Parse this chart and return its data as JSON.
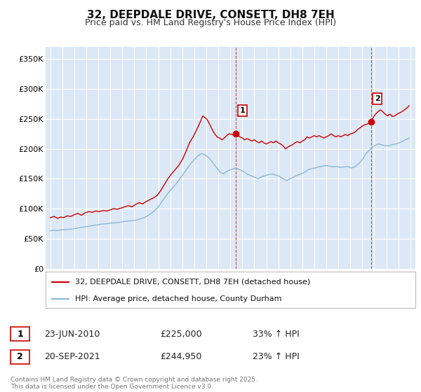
{
  "title": "32, DEEPDALE DRIVE, CONSETT, DH8 7EH",
  "subtitle": "Price paid vs. HM Land Registry's House Price Index (HPI)",
  "title_fontsize": 11,
  "subtitle_fontsize": 9,
  "bg_color": "#ffffff",
  "plot_bg_color": "#dce8f5",
  "red_color": "#cc0000",
  "blue_color": "#89b8d9",
  "grid_color": "#ffffff",
  "ylim": [
    0,
    370000
  ],
  "yticks": [
    0,
    50000,
    100000,
    150000,
    200000,
    250000,
    300000,
    350000
  ],
  "ytick_labels": [
    "£0",
    "£50K",
    "£100K",
    "£150K",
    "£200K",
    "£250K",
    "£300K",
    "£350K"
  ],
  "xlim_start": 1994.6,
  "xlim_end": 2025.4,
  "xticks": [
    1995,
    1996,
    1997,
    1998,
    1999,
    2000,
    2001,
    2002,
    2003,
    2004,
    2005,
    2006,
    2007,
    2008,
    2009,
    2010,
    2011,
    2012,
    2013,
    2014,
    2015,
    2016,
    2017,
    2018,
    2019,
    2020,
    2021,
    2022,
    2023,
    2024,
    2025
  ],
  "marker1_x": 2010.47,
  "marker1_y": 225000,
  "marker1_label": "1",
  "marker1_date": "23-JUN-2010",
  "marker1_price": "£225,000",
  "marker1_hpi": "33% ↑ HPI",
  "marker2_x": 2021.72,
  "marker2_y": 244950,
  "marker2_label": "2",
  "marker2_date": "20-SEP-2021",
  "marker2_price": "£244,950",
  "marker2_hpi": "23% ↑ HPI",
  "legend_label_red": "32, DEEPDALE DRIVE, CONSETT, DH8 7EH (detached house)",
  "legend_label_blue": "HPI: Average price, detached house, County Durham",
  "footnote": "Contains HM Land Registry data © Crown copyright and database right 2025.\nThis data is licensed under the Open Government Licence v3.0.",
  "red_data": [
    [
      1995.0,
      85000
    ],
    [
      1995.3,
      87000
    ],
    [
      1995.6,
      84000
    ],
    [
      1995.9,
      86000
    ],
    [
      1996.1,
      85000
    ],
    [
      1996.4,
      88000
    ],
    [
      1996.7,
      87000
    ],
    [
      1997.0,
      90000
    ],
    [
      1997.3,
      92000
    ],
    [
      1997.6,
      89000
    ],
    [
      1997.9,
      93000
    ],
    [
      1998.2,
      95000
    ],
    [
      1998.5,
      94000
    ],
    [
      1998.8,
      96000
    ],
    [
      1999.1,
      95000
    ],
    [
      1999.4,
      97000
    ],
    [
      1999.7,
      96000
    ],
    [
      2000.0,
      98000
    ],
    [
      2000.3,
      100000
    ],
    [
      2000.6,
      99000
    ],
    [
      2000.9,
      101000
    ],
    [
      2001.2,
      103000
    ],
    [
      2001.5,
      105000
    ],
    [
      2001.8,
      103000
    ],
    [
      2002.1,
      107000
    ],
    [
      2002.4,
      110000
    ],
    [
      2002.7,
      108000
    ],
    [
      2003.0,
      112000
    ],
    [
      2003.3,
      115000
    ],
    [
      2003.6,
      118000
    ],
    [
      2003.9,
      122000
    ],
    [
      2004.2,
      130000
    ],
    [
      2004.5,
      140000
    ],
    [
      2004.8,
      150000
    ],
    [
      2005.1,
      158000
    ],
    [
      2005.4,
      165000
    ],
    [
      2005.7,
      172000
    ],
    [
      2006.0,
      182000
    ],
    [
      2006.3,
      195000
    ],
    [
      2006.6,
      210000
    ],
    [
      2006.9,
      220000
    ],
    [
      2007.2,
      232000
    ],
    [
      2007.5,
      245000
    ],
    [
      2007.7,
      255000
    ],
    [
      2007.9,
      252000
    ],
    [
      2008.1,
      248000
    ],
    [
      2008.3,
      240000
    ],
    [
      2008.5,
      232000
    ],
    [
      2008.7,
      225000
    ],
    [
      2008.9,
      220000
    ],
    [
      2009.1,
      218000
    ],
    [
      2009.3,
      215000
    ],
    [
      2009.5,
      218000
    ],
    [
      2009.7,
      222000
    ],
    [
      2009.9,
      225000
    ],
    [
      2010.1,
      224000
    ],
    [
      2010.3,
      223000
    ],
    [
      2010.47,
      225000
    ],
    [
      2010.6,
      222000
    ],
    [
      2010.8,
      220000
    ],
    [
      2011.0,
      218000
    ],
    [
      2011.2,
      215000
    ],
    [
      2011.4,
      217000
    ],
    [
      2011.6,
      215000
    ],
    [
      2011.8,
      213000
    ],
    [
      2012.0,
      215000
    ],
    [
      2012.2,
      212000
    ],
    [
      2012.4,
      210000
    ],
    [
      2012.6,
      213000
    ],
    [
      2012.8,
      210000
    ],
    [
      2013.0,
      208000
    ],
    [
      2013.2,
      210000
    ],
    [
      2013.4,
      212000
    ],
    [
      2013.6,
      210000
    ],
    [
      2013.8,
      213000
    ],
    [
      2014.0,
      210000
    ],
    [
      2014.2,
      208000
    ],
    [
      2014.4,
      205000
    ],
    [
      2014.6,
      200000
    ],
    [
      2014.8,
      203000
    ],
    [
      2015.0,
      205000
    ],
    [
      2015.2,
      207000
    ],
    [
      2015.4,
      210000
    ],
    [
      2015.6,
      212000
    ],
    [
      2015.8,
      210000
    ],
    [
      2016.0,
      213000
    ],
    [
      2016.2,
      215000
    ],
    [
      2016.4,
      220000
    ],
    [
      2016.6,
      218000
    ],
    [
      2016.8,
      220000
    ],
    [
      2017.0,
      222000
    ],
    [
      2017.2,
      220000
    ],
    [
      2017.4,
      222000
    ],
    [
      2017.6,
      220000
    ],
    [
      2017.8,
      218000
    ],
    [
      2018.0,
      220000
    ],
    [
      2018.2,
      222000
    ],
    [
      2018.4,
      225000
    ],
    [
      2018.6,
      222000
    ],
    [
      2018.8,
      220000
    ],
    [
      2019.0,
      222000
    ],
    [
      2019.2,
      220000
    ],
    [
      2019.4,
      222000
    ],
    [
      2019.6,
      224000
    ],
    [
      2019.8,
      222000
    ],
    [
      2020.0,
      225000
    ],
    [
      2020.2,
      226000
    ],
    [
      2020.4,
      228000
    ],
    [
      2020.6,
      232000
    ],
    [
      2020.8,
      235000
    ],
    [
      2021.0,
      238000
    ],
    [
      2021.2,
      240000
    ],
    [
      2021.5,
      242000
    ],
    [
      2021.72,
      244950
    ],
    [
      2021.9,
      252000
    ],
    [
      2022.1,
      258000
    ],
    [
      2022.3,
      262000
    ],
    [
      2022.5,
      265000
    ],
    [
      2022.7,
      262000
    ],
    [
      2022.9,
      258000
    ],
    [
      2023.1,
      255000
    ],
    [
      2023.3,
      258000
    ],
    [
      2023.5,
      254000
    ],
    [
      2023.7,
      255000
    ],
    [
      2023.9,
      258000
    ],
    [
      2024.1,
      260000
    ],
    [
      2024.3,
      262000
    ],
    [
      2024.5,
      265000
    ],
    [
      2024.7,
      268000
    ],
    [
      2024.9,
      272000
    ]
  ],
  "blue_data": [
    [
      1995.0,
      63000
    ],
    [
      1995.3,
      64000
    ],
    [
      1995.6,
      63500
    ],
    [
      1995.9,
      64500
    ],
    [
      1996.2,
      65000
    ],
    [
      1996.5,
      65500
    ],
    [
      1996.8,
      66000
    ],
    [
      1997.1,
      67000
    ],
    [
      1997.4,
      68000
    ],
    [
      1997.7,
      69000
    ],
    [
      1998.0,
      70000
    ],
    [
      1998.3,
      71000
    ],
    [
      1998.6,
      72000
    ],
    [
      1998.9,
      73000
    ],
    [
      1999.2,
      74000
    ],
    [
      1999.5,
      74500
    ],
    [
      1999.8,
      75000
    ],
    [
      2000.1,
      76000
    ],
    [
      2000.4,
      76500
    ],
    [
      2000.7,
      77000
    ],
    [
      2001.0,
      78000
    ],
    [
      2001.3,
      79000
    ],
    [
      2001.6,
      79500
    ],
    [
      2001.9,
      80000
    ],
    [
      2002.2,
      81000
    ],
    [
      2002.5,
      83000
    ],
    [
      2002.8,
      85000
    ],
    [
      2003.1,
      88000
    ],
    [
      2003.4,
      92000
    ],
    [
      2003.7,
      97000
    ],
    [
      2004.0,
      103000
    ],
    [
      2004.3,
      112000
    ],
    [
      2004.6,
      120000
    ],
    [
      2004.9,
      128000
    ],
    [
      2005.2,
      135000
    ],
    [
      2005.5,
      142000
    ],
    [
      2005.8,
      150000
    ],
    [
      2006.1,
      158000
    ],
    [
      2006.4,
      167000
    ],
    [
      2006.7,
      175000
    ],
    [
      2007.0,
      182000
    ],
    [
      2007.3,
      188000
    ],
    [
      2007.6,
      192000
    ],
    [
      2007.9,
      190000
    ],
    [
      2008.2,
      185000
    ],
    [
      2008.5,
      178000
    ],
    [
      2008.8,
      170000
    ],
    [
      2009.1,
      162000
    ],
    [
      2009.4,
      158000
    ],
    [
      2009.7,
      162000
    ],
    [
      2010.0,
      165000
    ],
    [
      2010.47,
      168000
    ],
    [
      2010.8,
      165000
    ],
    [
      2011.1,
      162000
    ],
    [
      2011.4,
      158000
    ],
    [
      2011.7,
      155000
    ],
    [
      2012.0,
      153000
    ],
    [
      2012.3,
      150000
    ],
    [
      2012.6,
      153000
    ],
    [
      2012.9,
      155000
    ],
    [
      2013.2,
      157000
    ],
    [
      2013.5,
      158000
    ],
    [
      2013.8,
      156000
    ],
    [
      2014.1,
      154000
    ],
    [
      2014.4,
      150000
    ],
    [
      2014.7,
      147000
    ],
    [
      2015.0,
      150000
    ],
    [
      2015.3,
      153000
    ],
    [
      2015.6,
      156000
    ],
    [
      2015.9,
      158000
    ],
    [
      2016.2,
      161000
    ],
    [
      2016.5,
      165000
    ],
    [
      2016.8,
      167000
    ],
    [
      2017.1,
      168000
    ],
    [
      2017.4,
      170000
    ],
    [
      2017.7,
      171000
    ],
    [
      2018.0,
      172000
    ],
    [
      2018.3,
      171000
    ],
    [
      2018.6,
      170000
    ],
    [
      2018.9,
      170000
    ],
    [
      2019.2,
      169000
    ],
    [
      2019.5,
      170000
    ],
    [
      2019.8,
      170000
    ],
    [
      2020.1,
      168000
    ],
    [
      2020.4,
      170000
    ],
    [
      2020.7,
      175000
    ],
    [
      2021.0,
      182000
    ],
    [
      2021.3,
      192000
    ],
    [
      2021.72,
      200000
    ],
    [
      2022.0,
      205000
    ],
    [
      2022.3,
      208000
    ],
    [
      2022.6,
      207000
    ],
    [
      2022.9,
      205000
    ],
    [
      2023.2,
      205000
    ],
    [
      2023.5,
      207000
    ],
    [
      2023.8,
      208000
    ],
    [
      2024.1,
      210000
    ],
    [
      2024.4,
      213000
    ],
    [
      2024.7,
      216000
    ],
    [
      2024.9,
      218000
    ]
  ]
}
